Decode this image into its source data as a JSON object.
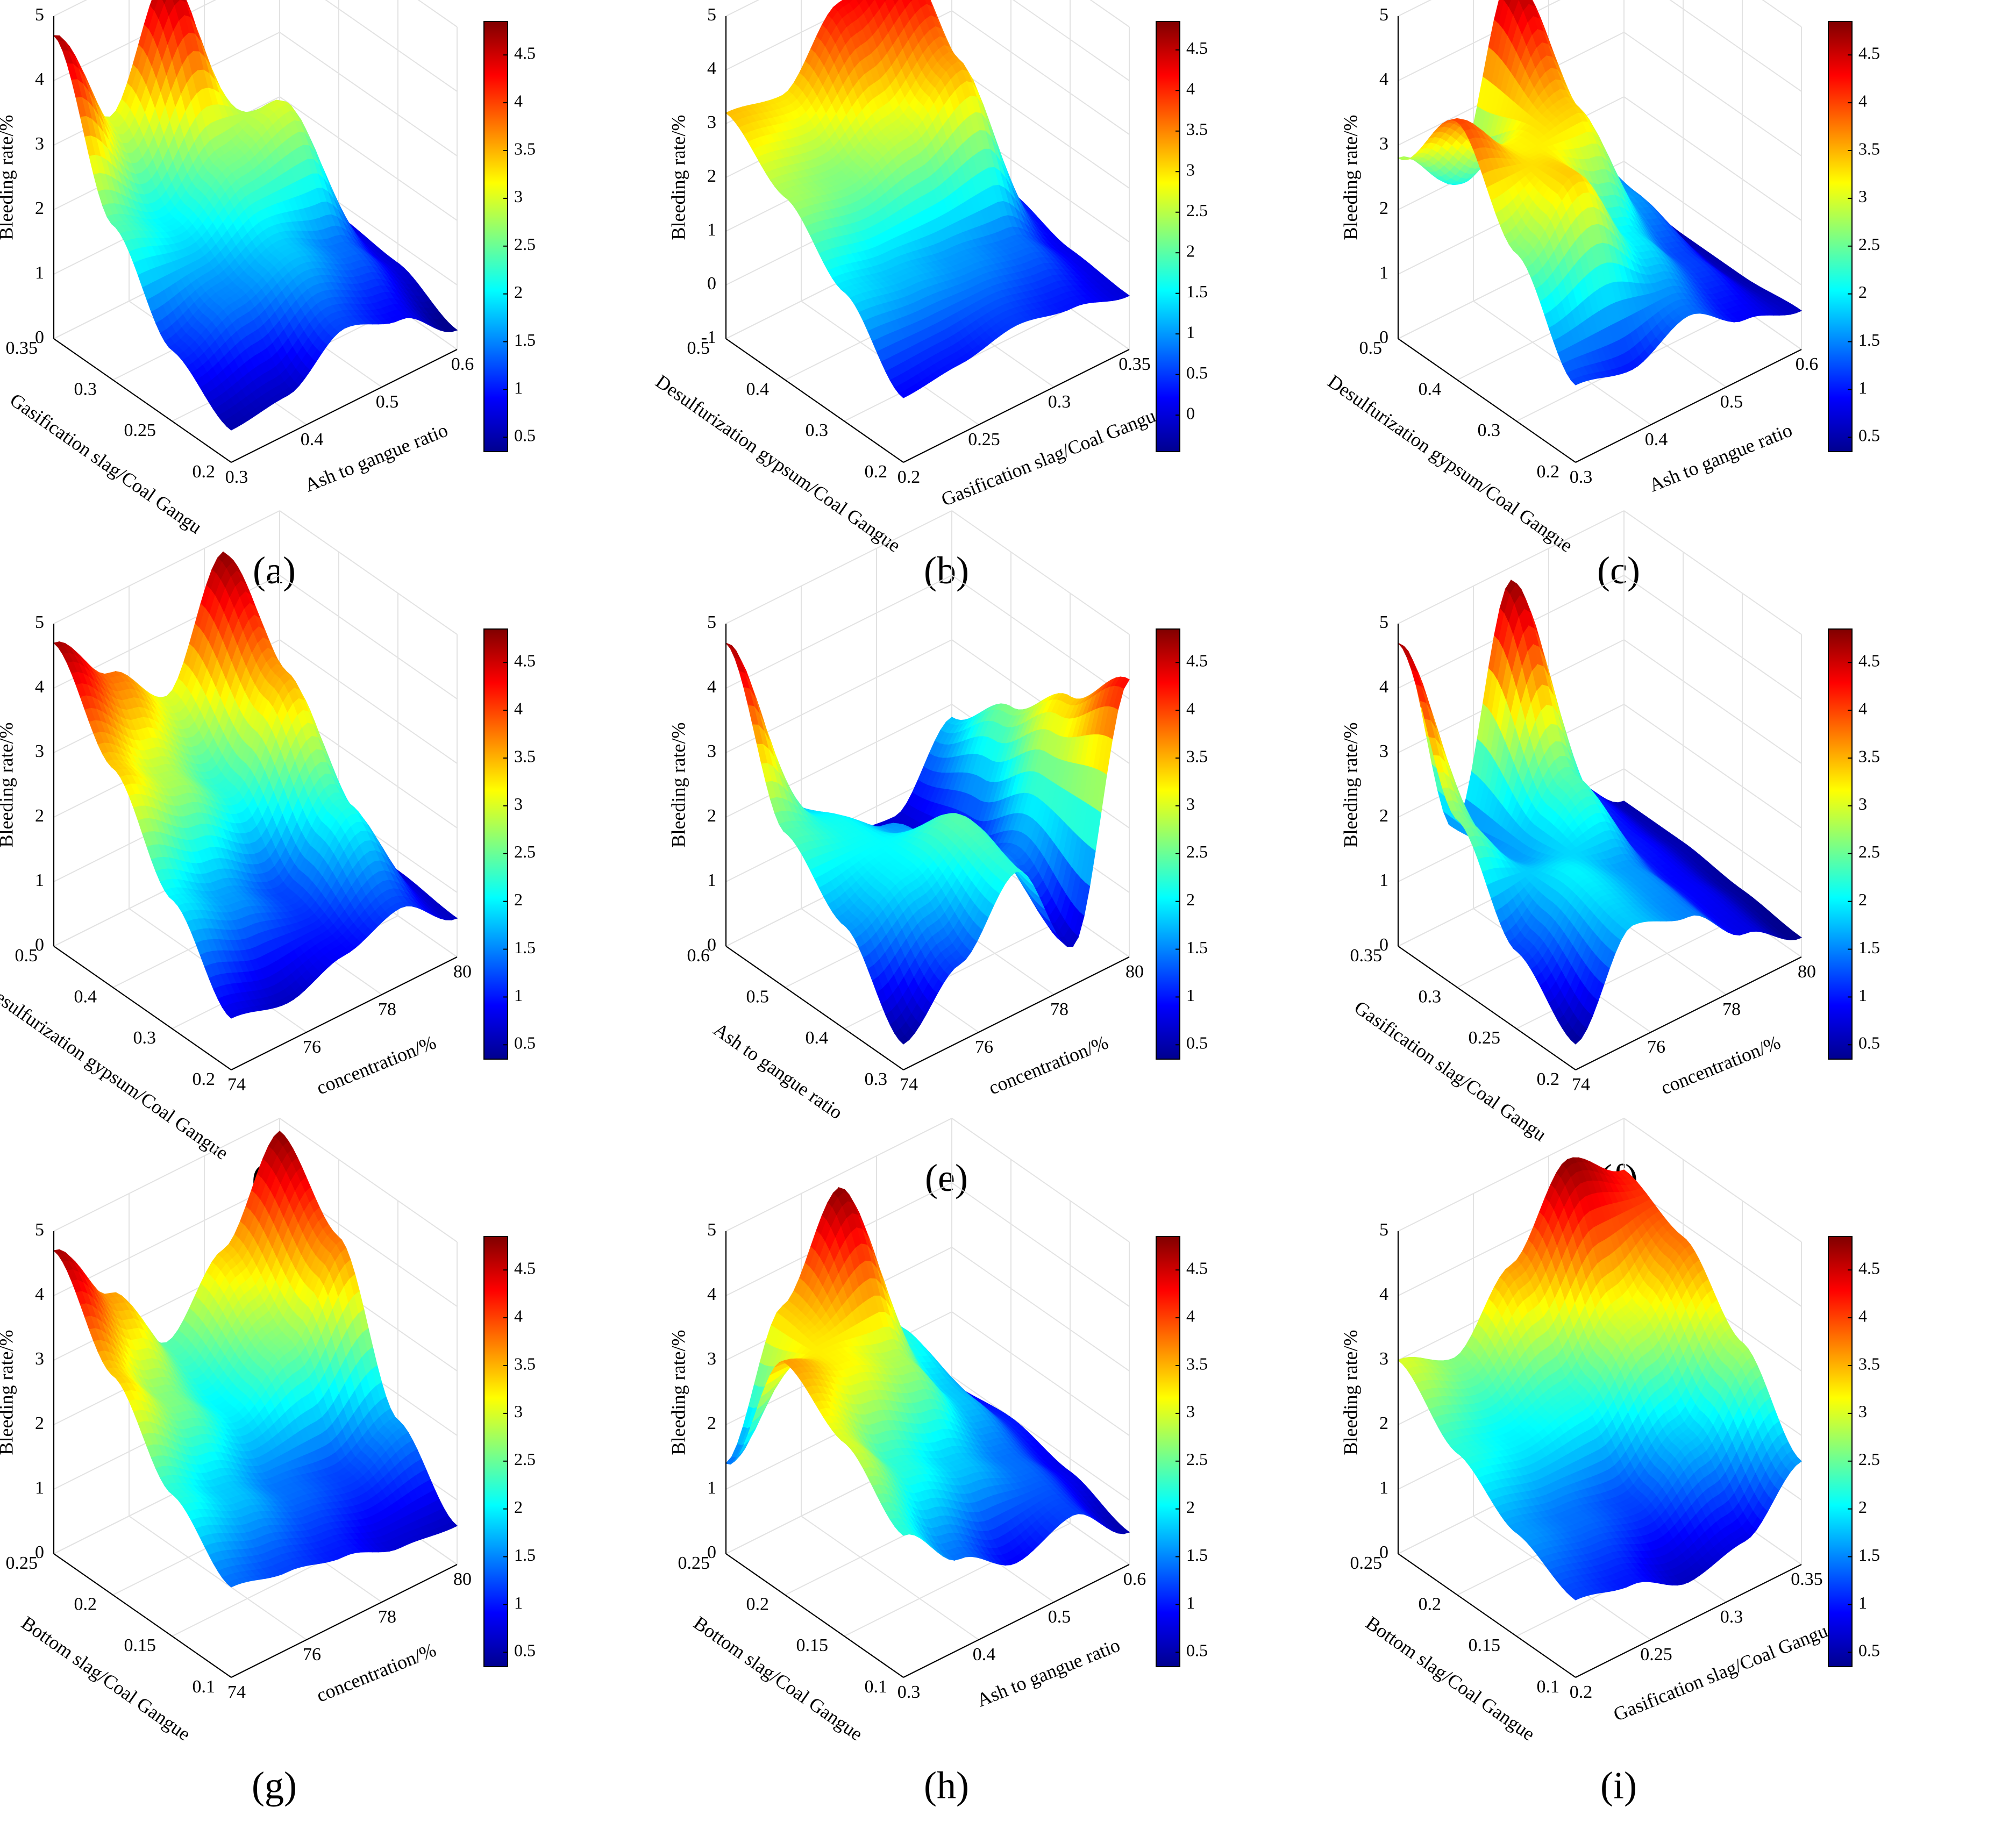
{
  "figure": {
    "colormap": [
      "#00008f",
      "#0000ff",
      "#0080ff",
      "#00ffff",
      "#80ff80",
      "#ffff00",
      "#ff8000",
      "#ff0000",
      "#800000"
    ],
    "axis_color": "#000000",
    "grid_color": "#e2e2e2"
  },
  "chart_data": [
    {
      "panel": "(a)",
      "type": "surface",
      "xlabel": "Ash to gangue ratio",
      "ylabel": "Gasification slag/Coal Gangu",
      "zlabel": "Bleeding rate/%",
      "xticks": [
        "0.3",
        "0.4",
        "0.5",
        "0.6"
      ],
      "yticks": [
        "0.2",
        "0.25",
        "0.3",
        "0.35"
      ],
      "zticks": [
        "0",
        "1",
        "2",
        "3",
        "4",
        "5"
      ],
      "zlim": [
        0,
        5
      ],
      "colorbar_ticks": [
        "0.5",
        "1",
        "1.5",
        "2",
        "2.5",
        "3",
        "3.5",
        "4",
        "4.5"
      ],
      "colorbar_range": [
        0.35,
        4.85
      ],
      "grid": [
        [
          0.5,
          0.6,
          1.2,
          0.9,
          0.3
        ],
        [
          1.1,
          1.5,
          1.8,
          1.4,
          0.7
        ],
        [
          2.4,
          2.0,
          2.6,
          3.0,
          0.8
        ],
        [
          4.7,
          3.0,
          4.8,
          1.6,
          0.4
        ]
      ]
    },
    {
      "panel": "(b)",
      "type": "surface",
      "xlabel": "Gasification slag/Coal Gangu",
      "ylabel": "Desulfurization gypsum/Coal Gangue",
      "zlabel": "Bleeding rate/%",
      "xticks": [
        "0.2",
        "0.25",
        "0.3",
        "0.35"
      ],
      "yticks": [
        "0.2",
        "0.3",
        "0.4",
        "0.5"
      ],
      "zticks": [
        "-1",
        "0",
        "1",
        "2",
        "3",
        "4",
        "5"
      ],
      "zlim": [
        -1,
        5
      ],
      "colorbar_ticks": [
        "0",
        "0.5",
        "1",
        "1.5",
        "2",
        "2.5",
        "3",
        "3.5",
        "4",
        "4.5"
      ],
      "colorbar_range": [
        -0.45,
        4.85
      ],
      "grid": [
        [
          0.2,
          0.3,
          0.5,
          0.3,
          0.0
        ],
        [
          1.4,
          1.2,
          1.0,
          0.8,
          0.1
        ],
        [
          2.4,
          2.2,
          2.6,
          3.4,
          0.4
        ],
        [
          3.2,
          3.0,
          4.2,
          4.8,
          0.8
        ]
      ]
    },
    {
      "panel": "(c)",
      "type": "surface",
      "xlabel": "Ash to gangue ratio",
      "ylabel": "Desulfurization gypsum/Coal Gangue",
      "zlabel": "Bleeding rate/%",
      "xticks": [
        "0.3",
        "0.4",
        "0.5",
        "0.6"
      ],
      "yticks": [
        "0.2",
        "0.3",
        "0.4",
        "0.5"
      ],
      "zticks": [
        "0",
        "1",
        "2",
        "3",
        "4",
        "5"
      ],
      "zlim": [
        0,
        5
      ],
      "colorbar_ticks": [
        "0.5",
        "1",
        "1.5",
        "2",
        "2.5",
        "3",
        "3.5",
        "4",
        "4.5"
      ],
      "colorbar_range": [
        0.35,
        4.85
      ],
      "grid": [
        [
          1.2,
          1.0,
          1.4,
          0.9,
          0.6
        ],
        [
          2.6,
          3.4,
          2.0,
          1.2,
          0.5
        ],
        [
          4.0,
          3.2,
          3.4,
          1.6,
          0.5
        ],
        [
          2.8,
          2.0,
          4.8,
          1.8,
          0.6
        ]
      ]
    },
    {
      "panel": "(d)",
      "type": "surface",
      "xlabel": "concentration/%",
      "ylabel": "Desulfurization gypsum/Coal Gangue",
      "zlabel": "Bleeding rate/%",
      "xticks": [
        "74",
        "76",
        "78",
        "80"
      ],
      "yticks": [
        "0.2",
        "0.3",
        "0.4",
        "0.5"
      ],
      "zticks": [
        "0",
        "1",
        "2",
        "3",
        "4",
        "5"
      ],
      "zlim": [
        0,
        5
      ],
      "colorbar_ticks": [
        "0.5",
        "1",
        "1.5",
        "2",
        "2.5",
        "3",
        "3.5",
        "4",
        "4.5"
      ],
      "colorbar_range": [
        0.35,
        4.85
      ],
      "grid": [
        [
          0.8,
          0.6,
          0.9,
          1.2,
          0.6
        ],
        [
          2.0,
          1.6,
          1.2,
          2.2,
          0.7
        ],
        [
          3.4,
          2.8,
          2.2,
          3.6,
          0.8
        ],
        [
          4.7,
          3.8,
          3.0,
          4.8,
          0.9
        ]
      ]
    },
    {
      "panel": "(e)",
      "type": "surface",
      "xlabel": "concentration/%",
      "ylabel": "Ash to gangue ratio",
      "zlabel": "Bleeding rate/%",
      "xticks": [
        "74",
        "76",
        "78",
        "80"
      ],
      "yticks": [
        "0.3",
        "0.4",
        "0.5",
        "0.6"
      ],
      "zticks": [
        "0",
        "1",
        "2",
        "3",
        "4",
        "5"
      ],
      "zlim": [
        0,
        5
      ],
      "colorbar_ticks": [
        "0.5",
        "1",
        "1.5",
        "2",
        "2.5",
        "3",
        "3.5",
        "4",
        "4.5"
      ],
      "colorbar_range": [
        0.35,
        4.85
      ],
      "grid": [
        [
          0.4,
          1.2,
          2.2,
          0.6,
          4.3
        ],
        [
          1.6,
          2.0,
          2.4,
          1.4,
          3.4
        ],
        [
          2.4,
          2.1,
          1.6,
          0.8,
          2.6
        ],
        [
          4.7,
          1.8,
          0.8,
          0.7,
          1.8
        ]
      ]
    },
    {
      "panel": "(f)",
      "type": "surface",
      "xlabel": "concentration/%",
      "ylabel": "Gasification slag/Coal Gangu",
      "zlabel": "Bleeding rate/%",
      "xticks": [
        "74",
        "76",
        "78",
        "80"
      ],
      "yticks": [
        "0.2",
        "0.25",
        "0.3",
        "0.35"
      ],
      "zticks": [
        "0",
        "1",
        "2",
        "3",
        "4",
        "5"
      ],
      "zlim": [
        0,
        5
      ],
      "colorbar_ticks": [
        "0.5",
        "1",
        "1.5",
        "2",
        "2.5",
        "3",
        "3.5",
        "4",
        "4.5"
      ],
      "colorbar_range": [
        0.35,
        4.85
      ],
      "grid": [
        [
          0.4,
          1.8,
          1.5,
          0.8,
          0.3
        ],
        [
          1.2,
          2.0,
          1.6,
          0.9,
          0.4
        ],
        [
          2.6,
          1.6,
          2.4,
          1.0,
          0.5
        ],
        [
          4.7,
          1.4,
          4.8,
          1.2,
          0.5
        ]
      ]
    },
    {
      "panel": "(g)",
      "type": "surface",
      "xlabel": "concentration/%",
      "ylabel": "Bottom slag/Coal Gangue",
      "zlabel": "Bleeding rate/%",
      "xticks": [
        "74",
        "76",
        "78",
        "80"
      ],
      "yticks": [
        "0.1",
        "0.15",
        "0.2",
        "0.25"
      ],
      "zticks": [
        "0",
        "1",
        "2",
        "3",
        "4",
        "5"
      ],
      "zlim": [
        0,
        5
      ],
      "colorbar_ticks": [
        "0.5",
        "1",
        "1.5",
        "2",
        "2.5",
        "3",
        "3.5",
        "4",
        "4.5"
      ],
      "colorbar_range": [
        0.35,
        4.85
      ],
      "grid": [
        [
          1.4,
          1.2,
          1.0,
          0.7,
          0.6
        ],
        [
          2.2,
          1.8,
          1.4,
          1.2,
          1.6
        ],
        [
          3.4,
          2.6,
          2.0,
          2.6,
          3.8
        ],
        [
          4.7,
          3.6,
          2.4,
          3.4,
          4.8
        ]
      ]
    },
    {
      "panel": "(h)",
      "type": "surface",
      "xlabel": "Ash to gangue ratio",
      "ylabel": "Bottom slag/Coal Gangue",
      "zlabel": "Bleeding rate/%",
      "xticks": [
        "0.3",
        "0.4",
        "0.5",
        "0.6"
      ],
      "yticks": [
        "0.1",
        "0.15",
        "0.2",
        "0.25"
      ],
      "zticks": [
        "0",
        "1",
        "2",
        "3",
        "4",
        "5"
      ],
      "zlim": [
        0,
        5
      ],
      "colorbar_ticks": [
        "0.5",
        "1",
        "1.5",
        "2",
        "2.5",
        "3",
        "3.5",
        "4",
        "4.5"
      ],
      "colorbar_range": [
        0.35,
        4.85
      ],
      "grid": [
        [
          2.2,
          1.4,
          0.9,
          1.2,
          0.5
        ],
        [
          3.0,
          2.2,
          1.8,
          1.4,
          0.8
        ],
        [
          3.6,
          3.2,
          2.8,
          1.8,
          1.0
        ],
        [
          1.4,
          3.4,
          4.8,
          2.2,
          0.9
        ]
      ]
    },
    {
      "panel": "(i)",
      "type": "surface",
      "xlabel": "Gasification slag/Coal Gangu",
      "ylabel": "Bottom slag/Coal Gangue",
      "zlabel": "Bleeding rate/%",
      "xticks": [
        "0.2",
        "0.25",
        "0.3",
        "0.35"
      ],
      "yticks": [
        "0.1",
        "0.15",
        "0.2",
        "0.25"
      ],
      "zticks": [
        "0",
        "1",
        "2",
        "3",
        "4",
        "5"
      ],
      "zlim": [
        0,
        5
      ],
      "colorbar_ticks": [
        "0.5",
        "1",
        "1.5",
        "2",
        "2.5",
        "3",
        "3.5",
        "4",
        "4.5"
      ],
      "colorbar_range": [
        0.35,
        4.85
      ],
      "grid": [
        [
          1.2,
          1.0,
          0.6,
          0.8,
          1.6
        ],
        [
          1.6,
          1.4,
          1.2,
          1.8,
          2.8
        ],
        [
          2.2,
          2.0,
          2.2,
          3.0,
          3.8
        ],
        [
          3.0,
          2.6,
          3.6,
          4.8,
          4.2
        ]
      ]
    }
  ]
}
